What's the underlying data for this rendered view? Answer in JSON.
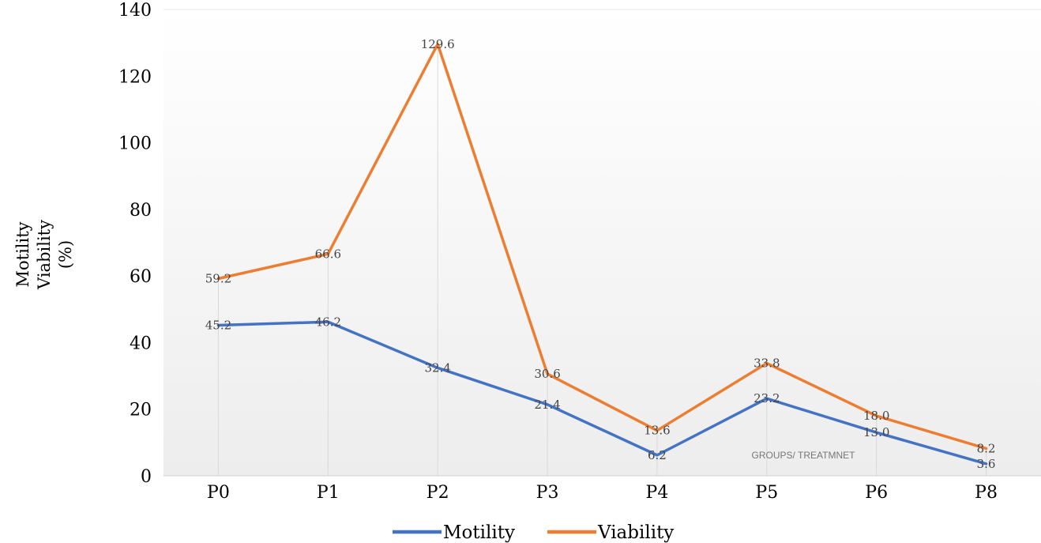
{
  "chart_data": {
    "type": "line",
    "title": "",
    "ylabel_lines": [
      "Motility",
      "Viability",
      "(%)"
    ],
    "xlabel": "",
    "categories": [
      "P0",
      "P1",
      "P2",
      "P3",
      "P4",
      "P5",
      "P6",
      "P8"
    ],
    "y_ticks": [
      "0",
      "20",
      "40",
      "60",
      "80",
      "100",
      "120",
      "140"
    ],
    "ylim": [
      0,
      140
    ],
    "grid": "vertical drop lines at categories",
    "legend": "bottom-center",
    "annotation": "GROUPS/ TREATMNET",
    "series": [
      {
        "name": "Motility",
        "color": "#4472C4",
        "values": [
          45.2,
          46.2,
          32.4,
          21.4,
          6.2,
          23.2,
          13.0,
          3.6
        ],
        "labels": [
          "45.2",
          "46.2",
          "32.4",
          "21.4",
          "6.2",
          "23.2",
          "13.0",
          "3.6"
        ]
      },
      {
        "name": "Viability",
        "color": "#ED7D31",
        "values": [
          59.2,
          66.6,
          129.6,
          30.6,
          13.6,
          33.8,
          18.0,
          8.2
        ],
        "labels": [
          "59.2",
          "66.6",
          "129.6",
          "30.6",
          "13.6",
          "33.8",
          "18.0",
          "8.2"
        ]
      }
    ]
  }
}
